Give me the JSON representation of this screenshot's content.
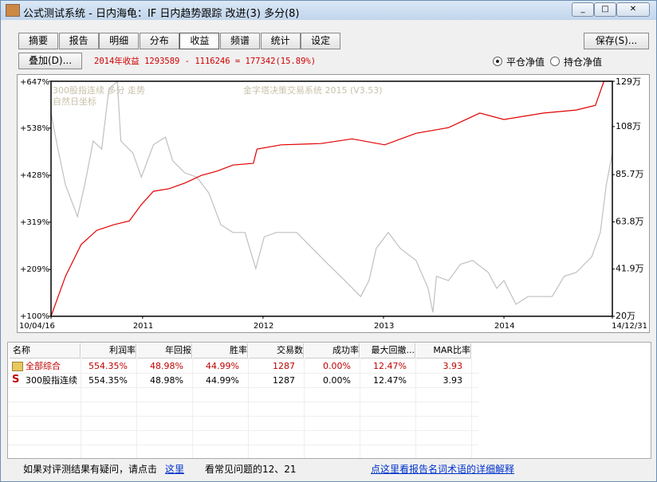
{
  "window": {
    "title": "公式测试系统 - 日内海龟：IF 日内趋势跟踪 改进(3) 多分(8)"
  },
  "toolbar": {
    "tabs": [
      "摘要",
      "报告",
      "明细",
      "分布",
      "收益",
      "频谱",
      "统计",
      "设定"
    ],
    "selected_tab": 4,
    "save": "保存(S)...",
    "overlay": "叠加(D)...",
    "summary": "2014年收益 1293589 - 1116246 = 177342(15.89%)",
    "radios": [
      "平仓净值",
      "持仓净值"
    ],
    "radio_selected": 0
  },
  "chart_data": {
    "type": "line",
    "annotations": [
      "300股指连续 多分 走势",
      "自然日坐标",
      "金字塔决策交易系统 2015 (V3.53)"
    ],
    "xlim": [
      2010.24,
      2014.9
    ],
    "xticks": [
      {
        "value": 2010.24,
        "label": "10/04/16"
      },
      {
        "value": 2011,
        "label": "2011"
      },
      {
        "value": 2012,
        "label": "2012"
      },
      {
        "value": 2013,
        "label": "2013"
      },
      {
        "value": 2014,
        "label": "2014"
      },
      {
        "value": 2014.9,
        "label": "14/12/31"
      }
    ],
    "ylim": [
      100,
      647
    ],
    "yticks": [
      {
        "value": 100,
        "label": "+100%"
      },
      {
        "value": 209,
        "label": "+209%"
      },
      {
        "value": 319,
        "label": "+319%"
      },
      {
        "value": 428,
        "label": "+428%"
      },
      {
        "value": 538,
        "label": "+538%"
      },
      {
        "value": 647,
        "label": "+647%"
      }
    ],
    "y2lim": [
      20,
      129
    ],
    "y2ticks": [
      {
        "value": 20,
        "label": "20万"
      },
      {
        "value": 41.9,
        "label": "41.9万"
      },
      {
        "value": 63.8,
        "label": "63.8万"
      },
      {
        "value": 85.7,
        "label": "85.7万"
      },
      {
        "value": 108,
        "label": "108万"
      },
      {
        "value": 129,
        "label": "129万"
      }
    ],
    "series": [
      {
        "color": "#c0c0c0",
        "x": [
          2010.24,
          2010.29,
          2010.36,
          2010.46,
          2010.52,
          2010.59,
          2010.66,
          2010.72,
          2010.79,
          2010.82,
          2010.92,
          2010.99,
          2011.09,
          2011.19,
          2011.25,
          2011.35,
          2011.45,
          2011.55,
          2011.65,
          2011.75,
          2011.85,
          2011.94,
          2012.01,
          2012.11,
          2012.28,
          2012.41,
          2012.54,
          2012.68,
          2012.81,
          2012.88,
          2012.94,
          2013.04,
          2013.14,
          2013.27,
          2013.37,
          2013.41,
          2013.44,
          2013.54,
          2013.64,
          2013.74,
          2013.87,
          2013.94,
          2014.0,
          2014.1,
          2014.2,
          2014.4,
          2014.5,
          2014.6,
          2014.73,
          2014.8,
          2014.85,
          2014.9
        ],
        "values": [
          573,
          499,
          406,
          332,
          406,
          508,
          489,
          628,
          647,
          508,
          480,
          424,
          499,
          517,
          462,
          434,
          424,
          387,
          313,
          295,
          295,
          211,
          285,
          295,
          295,
          258,
          221,
          183,
          146,
          183,
          258,
          295,
          258,
          230,
          165,
          109,
          193,
          183,
          221,
          230,
          202,
          165,
          183,
          128,
          146,
          146,
          193,
          202,
          239,
          295,
          406,
          480
        ]
      },
      {
        "color": "#e00000",
        "x": [
          2010.24,
          2010.36,
          2010.49,
          2010.62,
          2010.76,
          2010.89,
          2010.99,
          2011.09,
          2011.22,
          2011.35,
          2011.49,
          2011.62,
          2011.75,
          2011.92,
          2011.95,
          2012.15,
          2012.48,
          2012.74,
          2013.01,
          2013.27,
          2013.54,
          2013.8,
          2014.0,
          2014.33,
          2014.6,
          2014.76,
          2014.83,
          2014.9
        ],
        "values": [
          100,
          193,
          267,
          300,
          313,
          322,
          360,
          391,
          397,
          410,
          428,
          438,
          452,
          456,
          489,
          499,
          502,
          513,
          499,
          526,
          539,
          573,
          558,
          573,
          580,
          591,
          647,
          647
        ]
      }
    ]
  },
  "table": {
    "headers": [
      "名称",
      "利润率",
      "年回报",
      "胜率",
      "交易数",
      "成功率",
      "最大回撤...",
      "MAR比率"
    ],
    "rows": [
      [
        "全部综合",
        "554.35%",
        "48.98%",
        "44.99%",
        "1287",
        "0.00%",
        "12.47%",
        "3.93"
      ],
      [
        "300股指连续",
        "554.35%",
        "48.98%",
        "44.99%",
        "1287",
        "0.00%",
        "12.47%",
        "3.93"
      ]
    ]
  },
  "footer": {
    "question": "如果对评测结果有疑问，请点击",
    "here": "这里",
    "faq": "看常见问题的12、21",
    "glossary": "点这里看报告名词术语的详细解释"
  }
}
